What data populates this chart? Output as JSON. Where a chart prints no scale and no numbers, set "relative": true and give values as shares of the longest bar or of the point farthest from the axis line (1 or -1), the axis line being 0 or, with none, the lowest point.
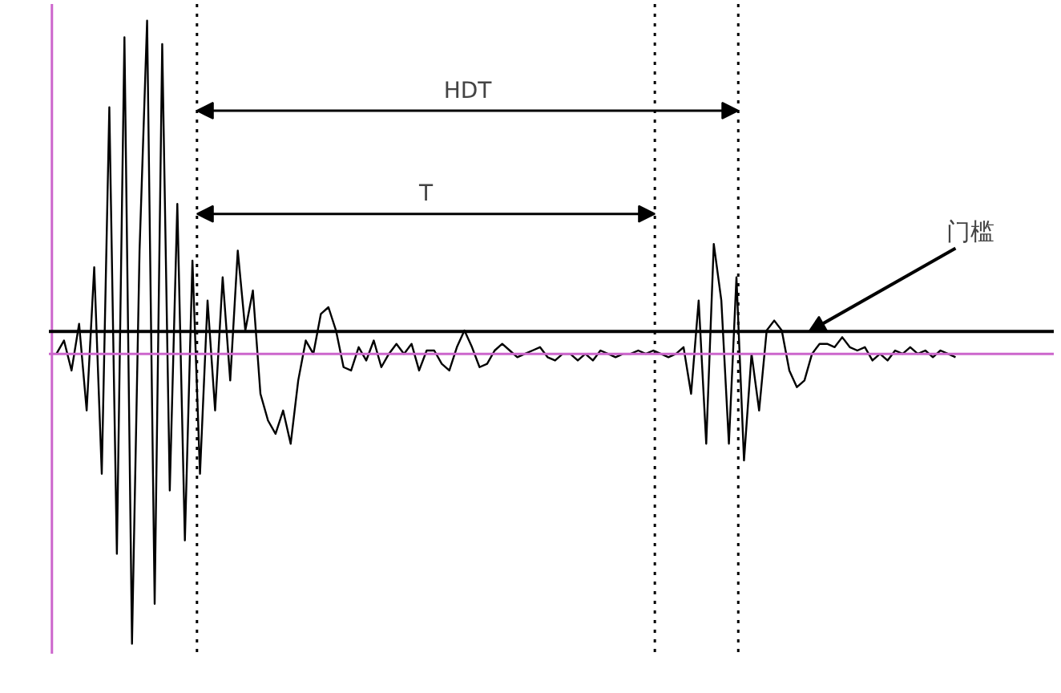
{
  "chart_data": {
    "type": "line",
    "relative": true,
    "categories": [
      null,
      null,
      null,
      null,
      null,
      null,
      null,
      null,
      null,
      null,
      null,
      null,
      null,
      null,
      null,
      null,
      null,
      null,
      null,
      null,
      null,
      null,
      null,
      null,
      null,
      null,
      null,
      null,
      null,
      null,
      null,
      null,
      null,
      null,
      null,
      null,
      null,
      null,
      null,
      null,
      null,
      null,
      null,
      null,
      null,
      null,
      null,
      null,
      null,
      null,
      null,
      null,
      null,
      null,
      null,
      null,
      null,
      null,
      null,
      null,
      null,
      null,
      null,
      null,
      null,
      null,
      null,
      null,
      null,
      null,
      null,
      null,
      null,
      null,
      null,
      null,
      null,
      null,
      null,
      null,
      null,
      null,
      null,
      null,
      null,
      null,
      null,
      null,
      null,
      null,
      null,
      null,
      null,
      null,
      null,
      null,
      null,
      null,
      null,
      null,
      null,
      null,
      null,
      null,
      null,
      null,
      null,
      null,
      null,
      null,
      null,
      null,
      null,
      null,
      null,
      null,
      null,
      null,
      null,
      null
    ],
    "series": [
      {
        "color": "#000000",
        "values": [
          0,
          0.04,
          -0.05,
          0.09,
          -0.17,
          0.26,
          -0.36,
          0.74,
          -0.6,
          0.95,
          -0.87,
          0.31,
          1,
          -0.75,
          0.93,
          -0.41,
          0.45,
          -0.56,
          0.28,
          -0.36,
          0.16,
          -0.17,
          0.23,
          -0.08,
          0.31,
          0.07,
          0.19,
          -0.12,
          -0.2,
          -0.24,
          -0.17,
          -0.27,
          -0.08,
          0.04,
          0,
          0.12,
          0.14,
          0.07,
          -0.04,
          -0.05,
          0.02,
          -0.02,
          0.04,
          -0.04,
          0,
          0.03,
          0,
          0.03,
          -0.05,
          0.01,
          0.01,
          -0.03,
          -0.05,
          0.02,
          0.07,
          0.02,
          -0.04,
          -0.03,
          0.01,
          0.03,
          0.01,
          -0.01,
          0,
          0.01,
          0.02,
          -0.01,
          -0.02,
          0,
          0,
          -0.02,
          0,
          -0.02,
          0.01,
          0,
          -0.01,
          0,
          0,
          0.01,
          0,
          0.01,
          0,
          -0.01,
          0,
          0.02,
          -0.12,
          0.16,
          -0.27,
          0.33,
          0.16,
          -0.27,
          0.23,
          -0.32,
          0,
          -0.17,
          0.07,
          0.1,
          0.07,
          -0.05,
          -0.1,
          -0.08,
          0,
          0.03,
          0.03,
          0.02,
          0.05,
          0.02,
          0.01,
          0.02,
          -0.02,
          0,
          -0.02,
          0.01,
          0,
          0.02,
          0,
          0.01,
          -0.01,
          0.01,
          0,
          -0.01
        ]
      }
    ],
    "ref_lines": [
      {
        "axis": "y",
        "value": 0.067,
        "label": "门槛",
        "color": "#000000",
        "line_style": "solid"
      },
      {
        "axis": "y",
        "value": 0,
        "label": null,
        "color": "#cc66cc",
        "line_style": "solid"
      }
    ],
    "annotations": [
      "HDT",
      "T"
    ],
    "grid": false,
    "marker": "none",
    "line_style": "solid"
  }
}
